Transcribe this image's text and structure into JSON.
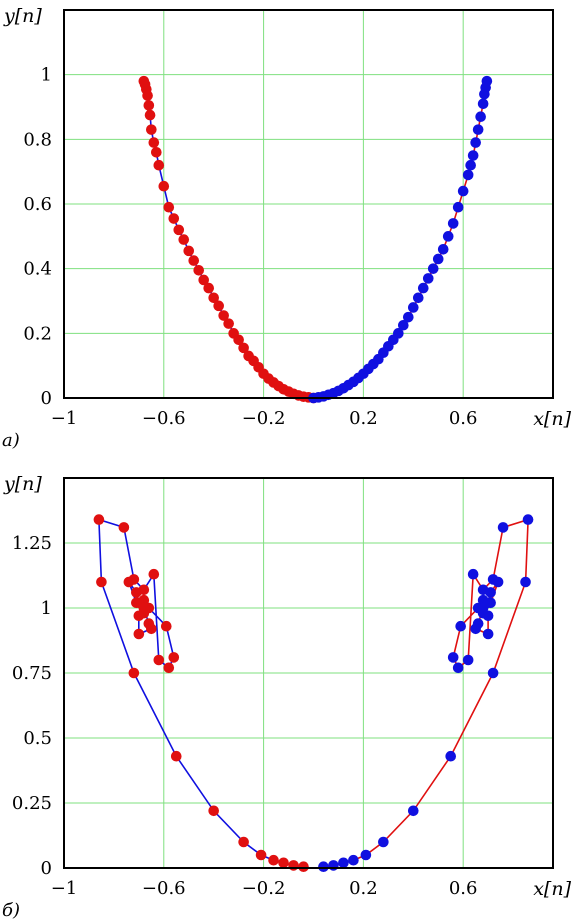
{
  "chart_data": [
    {
      "panel_label": "a)",
      "type": "scatter",
      "xlabel": "x[n]",
      "ylabel": "y[n]",
      "xlim": [
        -1,
        0.96
      ],
      "ylim": [
        0,
        1.2
      ],
      "xticks": [
        -1,
        -0.6,
        -0.2,
        0.2,
        0.6
      ],
      "xtick_labels": [
        "−1",
        "−0.6",
        "−0.2",
        "0.2",
        "0.6"
      ],
      "yticks": [
        0,
        0.2,
        0.4,
        0.6,
        0.8,
        1
      ],
      "ytick_labels": [
        "0",
        "0.2",
        "0.4",
        "0.6",
        "0.8",
        "1"
      ],
      "grid": true,
      "series": [
        {
          "color": "#e01010",
          "line_color": "#1010e0",
          "x": [
            -0.68,
            -0.675,
            -0.67,
            -0.665,
            -0.66,
            -0.655,
            -0.65,
            -0.64,
            -0.63,
            -0.62,
            -0.6,
            -0.58,
            -0.56,
            -0.54,
            -0.52,
            -0.5,
            -0.48,
            -0.46,
            -0.44,
            -0.42,
            -0.4,
            -0.38,
            -0.36,
            -0.34,
            -0.32,
            -0.3,
            -0.28,
            -0.26,
            -0.24,
            -0.22,
            -0.2,
            -0.18,
            -0.16,
            -0.14,
            -0.12,
            -0.1,
            -0.08,
            -0.06,
            -0.04,
            -0.02,
            0.0
          ],
          "y": [
            0.98,
            0.97,
            0.955,
            0.935,
            0.905,
            0.875,
            0.83,
            0.79,
            0.76,
            0.72,
            0.655,
            0.59,
            0.555,
            0.52,
            0.49,
            0.455,
            0.425,
            0.395,
            0.365,
            0.34,
            0.31,
            0.285,
            0.255,
            0.23,
            0.2,
            0.18,
            0.155,
            0.13,
            0.115,
            0.095,
            0.075,
            0.06,
            0.048,
            0.037,
            0.027,
            0.02,
            0.013,
            0.008,
            0.004,
            0.002,
            0.0
          ]
        },
        {
          "color": "#1010e0",
          "line_color": "#e01010",
          "x": [
            0.0,
            0.02,
            0.04,
            0.06,
            0.08,
            0.1,
            0.12,
            0.14,
            0.16,
            0.18,
            0.2,
            0.22,
            0.24,
            0.26,
            0.28,
            0.3,
            0.32,
            0.34,
            0.36,
            0.38,
            0.4,
            0.42,
            0.44,
            0.46,
            0.48,
            0.5,
            0.52,
            0.54,
            0.56,
            0.58,
            0.6,
            0.62,
            0.63,
            0.64,
            0.65,
            0.66,
            0.67,
            0.68,
            0.685,
            0.69,
            0.695
          ],
          "y": [
            0.0,
            0.002,
            0.005,
            0.01,
            0.015,
            0.022,
            0.03,
            0.04,
            0.05,
            0.062,
            0.075,
            0.09,
            0.105,
            0.12,
            0.14,
            0.16,
            0.18,
            0.2,
            0.225,
            0.25,
            0.28,
            0.31,
            0.34,
            0.37,
            0.4,
            0.43,
            0.46,
            0.5,
            0.54,
            0.59,
            0.64,
            0.69,
            0.72,
            0.75,
            0.79,
            0.83,
            0.87,
            0.91,
            0.94,
            0.96,
            0.98
          ]
        }
      ]
    },
    {
      "panel_label": "б)",
      "type": "scatter",
      "xlabel": "x[n]",
      "ylabel": "y[n]",
      "xlim": [
        -1,
        0.96
      ],
      "ylim": [
        0,
        1.5
      ],
      "xticks": [
        -1,
        -0.6,
        -0.2,
        0.2,
        0.6
      ],
      "xtick_labels": [
        "−1",
        "−0.6",
        "−0.2",
        "0.2",
        "0.6"
      ],
      "yticks": [
        0,
        0.25,
        0.5,
        0.75,
        1,
        1.25
      ],
      "ytick_labels": [
        "0",
        "0.25",
        "0.5",
        "0.75",
        "1",
        "1.25"
      ],
      "grid": true,
      "series": [
        {
          "color": "#e01010",
          "line_color": "#1010e0",
          "x": [
            -0.04,
            -0.08,
            -0.12,
            -0.16,
            -0.21,
            -0.28,
            -0.4,
            -0.55,
            -0.72,
            -0.85,
            -0.86,
            -0.76,
            -0.72,
            -0.68,
            -0.64,
            -0.62,
            -0.58,
            -0.56,
            -0.59,
            -0.66,
            -0.68,
            -0.71,
            -0.74,
            -0.71,
            -0.7,
            -0.68,
            -0.68,
            -0.66,
            -0.65,
            -0.7,
            -0.7
          ],
          "y": [
            0.005,
            0.01,
            0.02,
            0.03,
            0.05,
            0.1,
            0.22,
            0.43,
            0.75,
            1.1,
            1.34,
            1.31,
            1.11,
            1.07,
            1.13,
            0.8,
            0.77,
            0.81,
            0.93,
            1.0,
            1.03,
            1.02,
            1.1,
            1.06,
            1.02,
            0.98,
            1.0,
            0.94,
            0.92,
            0.9,
            0.97
          ]
        },
        {
          "color": "#1010e0",
          "line_color": "#e01010",
          "x": [
            0.04,
            0.08,
            0.12,
            0.16,
            0.21,
            0.28,
            0.4,
            0.55,
            0.72,
            0.85,
            0.86,
            0.76,
            0.72,
            0.68,
            0.64,
            0.62,
            0.58,
            0.56,
            0.59,
            0.66,
            0.68,
            0.71,
            0.74,
            0.71,
            0.7,
            0.68,
            0.68,
            0.66,
            0.65,
            0.7,
            0.7
          ],
          "y": [
            0.005,
            0.01,
            0.02,
            0.03,
            0.05,
            0.1,
            0.22,
            0.43,
            0.75,
            1.1,
            1.34,
            1.31,
            1.11,
            1.07,
            1.13,
            0.8,
            0.77,
            0.81,
            0.93,
            1.0,
            1.03,
            1.02,
            1.1,
            1.06,
            1.02,
            0.98,
            1.0,
            0.94,
            0.92,
            0.9,
            0.97
          ]
        }
      ]
    }
  ]
}
